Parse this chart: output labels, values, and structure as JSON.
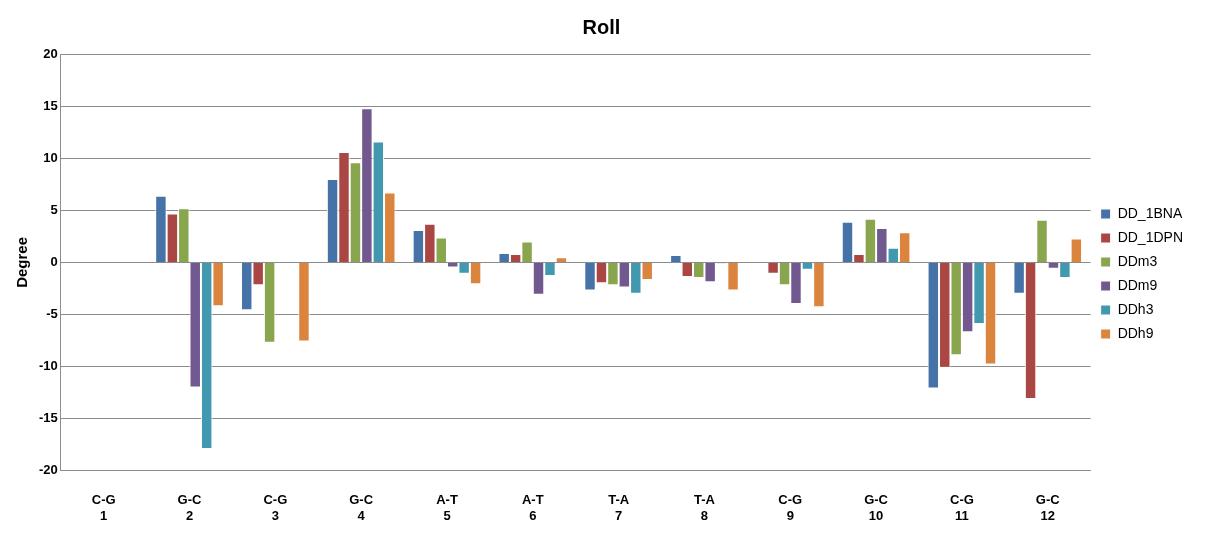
{
  "chart_data": {
    "type": "bar",
    "title": "Roll",
    "ylabel": "Degree",
    "categories": [
      "C-G\n1",
      "G-C\n2",
      "C-G\n3",
      "G-C\n4",
      "A-T\n5",
      "A-T\n6",
      "T-A\n7",
      "T-A\n8",
      "C-G\n9",
      "G-C\n10",
      "C-G\n11",
      "G-C\n12"
    ],
    "series": [
      {
        "name": "DD_1BNA",
        "color": "#4572a7",
        "values": [
          null,
          6.4,
          -4.6,
          8.0,
          3.1,
          0.9,
          -2.7,
          0.7,
          0,
          3.9,
          -12.1,
          -3.0
        ]
      },
      {
        "name": "DD_1DPN",
        "color": "#aa4643",
        "values": [
          null,
          4.7,
          -2.2,
          10.6,
          3.7,
          0.8,
          -2.0,
          -1.4,
          -1.1,
          0.8,
          -10.1,
          -13.1
        ]
      },
      {
        "name": "DDm3",
        "color": "#89a54e",
        "values": [
          null,
          5.2,
          -7.7,
          9.6,
          2.4,
          2.0,
          -2.2,
          -1.5,
          -2.2,
          4.2,
          -8.9,
          4.1
        ]
      },
      {
        "name": "DDm9",
        "color": "#71588f",
        "values": [
          null,
          -12.0,
          0,
          14.8,
          -0.5,
          -3.1,
          -2.4,
          -1.9,
          -4.0,
          3.3,
          -6.7,
          -0.6
        ]
      },
      {
        "name": "DDh3",
        "color": "#4198af",
        "values": [
          null,
          -17.9,
          0,
          11.6,
          -1.1,
          -1.3,
          -3.0,
          -0.1,
          -0.7,
          1.4,
          -5.9,
          -1.5
        ]
      },
      {
        "name": "DDh9",
        "color": "#db843d",
        "values": [
          null,
          -4.2,
          -7.6,
          6.7,
          -2.1,
          0.5,
          -1.7,
          -2.7,
          -4.3,
          2.9,
          -9.8,
          2.3
        ]
      }
    ],
    "ylim": [
      -20,
      20
    ],
    "yticks": [
      -20,
      -15,
      -10,
      -5,
      0,
      5,
      10,
      15,
      20
    ],
    "grid": "y",
    "legend": "right"
  }
}
